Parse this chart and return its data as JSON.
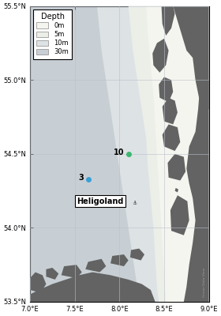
{
  "xlim": [
    7.0,
    9.0
  ],
  "ylim": [
    53.5,
    55.5
  ],
  "xticks": [
    7.0,
    7.5,
    8.0,
    8.5,
    9.0
  ],
  "yticks": [
    53.5,
    54.0,
    54.5,
    55.0,
    55.5
  ],
  "ocean_color": "#d2d8dc",
  "land_color": "#636363",
  "depth30_color": "#c8cfd4",
  "depth10_color": "#dde2e5",
  "depth5_color": "#eceee8",
  "depth0_color": "#f5f5f0",
  "grid_color": "#b8c0c8",
  "station3": {
    "lon": 7.65,
    "lat": 54.33,
    "color": "#3a9fd4",
    "label": "3"
  },
  "station10": {
    "lon": 8.1,
    "lat": 54.5,
    "color": "#3db86e",
    "label": "10"
  },
  "heligoland_label": {
    "lon": 7.52,
    "lat": 54.18,
    "text": "Heligoland"
  },
  "legend_title": "Depth",
  "legend_items": [
    {
      "label": "0m",
      "color": "#f5f5f0"
    },
    {
      "label": "5m",
      "color": "#eceee8"
    },
    {
      "label": "10m",
      "color": "#dde2e5"
    },
    {
      "label": "30m",
      "color": "#c8cfd4"
    }
  ],
  "figsize": [
    2.8,
    4.0
  ],
  "dpi": 100
}
